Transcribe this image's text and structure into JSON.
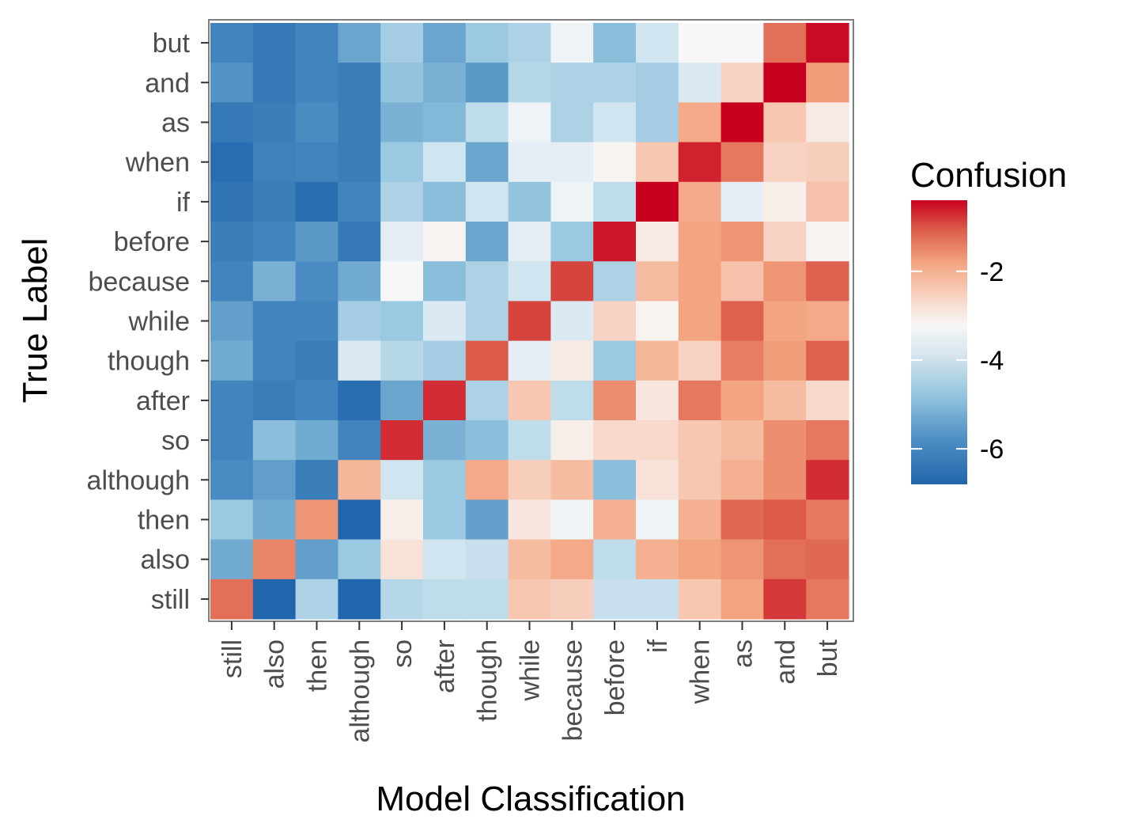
{
  "chart_data": {
    "type": "heatmap",
    "xlabel": "Model Classification",
    "ylabel": "True Label",
    "legend": {
      "title": "Confusion",
      "ticks": [
        "-2",
        "-4",
        "-6"
      ],
      "tick_values": [
        -2,
        -4,
        -6
      ],
      "position": "right"
    },
    "scale": {
      "min": -6.8,
      "mid": -3.8,
      "max": -0.4,
      "low_color": "#2166ac",
      "mid_color": "#f7f7f7",
      "high_color": "#c8001f"
    },
    "grid": false,
    "x_categories": [
      "still",
      "also",
      "then",
      "although",
      "so",
      "after",
      "though",
      "while",
      "because",
      "before",
      "if",
      "when",
      "as",
      "and",
      "but"
    ],
    "y_categories": [
      "but",
      "and",
      "as",
      "when",
      "if",
      "before",
      "because",
      "while",
      "though",
      "after",
      "so",
      "although",
      "then",
      "also",
      "still"
    ],
    "values": [
      [
        -6.0,
        -6.3,
        -6.0,
        -5.4,
        -4.7,
        -5.4,
        -4.8,
        -4.6,
        -3.9,
        -5.0,
        -4.2,
        -3.8,
        -3.8,
        -1.5,
        -0.5
      ],
      [
        -5.7,
        -6.3,
        -6.0,
        -6.2,
        -4.9,
        -5.2,
        -5.6,
        -4.5,
        -4.6,
        -4.6,
        -4.7,
        -4.1,
        -3.0,
        -0.4,
        -2.1
      ],
      [
        -6.3,
        -6.2,
        -5.8,
        -6.2,
        -5.2,
        -5.1,
        -4.4,
        -3.9,
        -4.6,
        -4.2,
        -4.7,
        -2.3,
        -0.4,
        -2.8,
        -3.5
      ],
      [
        -6.6,
        -6.1,
        -6.0,
        -6.2,
        -4.8,
        -4.2,
        -5.4,
        -4.0,
        -4.0,
        -3.7,
        -2.8,
        -0.7,
        -1.6,
        -3.0,
        -2.9
      ],
      [
        -6.4,
        -6.2,
        -6.6,
        -6.0,
        -4.6,
        -5.0,
        -4.2,
        -4.9,
        -3.9,
        -4.4,
        -0.4,
        -2.3,
        -4.0,
        -3.6,
        -2.7
      ],
      [
        -6.2,
        -6.0,
        -5.6,
        -6.3,
        -4.0,
        -3.7,
        -5.4,
        -4.0,
        -4.8,
        -0.6,
        -3.5,
        -2.2,
        -2.0,
        -3.0,
        -3.7
      ],
      [
        -6.0,
        -5.2,
        -5.8,
        -5.3,
        -3.8,
        -5.0,
        -4.6,
        -4.2,
        -1.0,
        -4.6,
        -2.6,
        -2.2,
        -2.7,
        -2.0,
        -1.3
      ],
      [
        -5.5,
        -6.0,
        -6.0,
        -4.7,
        -4.8,
        -4.1,
        -4.6,
        -1.0,
        -4.1,
        -3.0,
        -3.7,
        -2.2,
        -1.3,
        -2.2,
        -2.3
      ],
      [
        -5.3,
        -6.0,
        -6.2,
        -4.1,
        -4.5,
        -4.7,
        -1.2,
        -4.0,
        -3.5,
        -4.8,
        -2.5,
        -3.0,
        -1.7,
        -2.1,
        -1.3
      ],
      [
        -6.0,
        -6.2,
        -6.0,
        -6.6,
        -5.4,
        -0.8,
        -4.6,
        -2.8,
        -4.4,
        -1.9,
        -3.4,
        -1.6,
        -2.2,
        -2.6,
        -3.1
      ],
      [
        -6.0,
        -5.0,
        -5.3,
        -6.0,
        -0.8,
        -5.2,
        -5.0,
        -4.4,
        -3.6,
        -3.1,
        -3.1,
        -2.8,
        -2.6,
        -1.9,
        -1.6
      ],
      [
        -5.8,
        -5.5,
        -6.2,
        -2.5,
        -4.2,
        -4.8,
        -2.3,
        -2.9,
        -2.6,
        -5.0,
        -3.3,
        -2.8,
        -2.4,
        -1.9,
        -0.8
      ],
      [
        -4.8,
        -5.3,
        -2.0,
        -6.8,
        -3.6,
        -4.8,
        -5.5,
        -3.4,
        -3.9,
        -2.4,
        -3.9,
        -2.4,
        -1.4,
        -1.2,
        -1.6
      ],
      [
        -5.3,
        -1.8,
        -5.5,
        -4.8,
        -3.3,
        -4.2,
        -4.3,
        -2.6,
        -2.3,
        -4.4,
        -2.4,
        -2.2,
        -2.0,
        -1.5,
        -1.4
      ],
      [
        -1.5,
        -6.8,
        -4.6,
        -6.8,
        -4.5,
        -4.4,
        -4.4,
        -2.8,
        -2.9,
        -4.3,
        -4.3,
        -2.8,
        -2.2,
        -0.9,
        -1.6
      ]
    ]
  }
}
